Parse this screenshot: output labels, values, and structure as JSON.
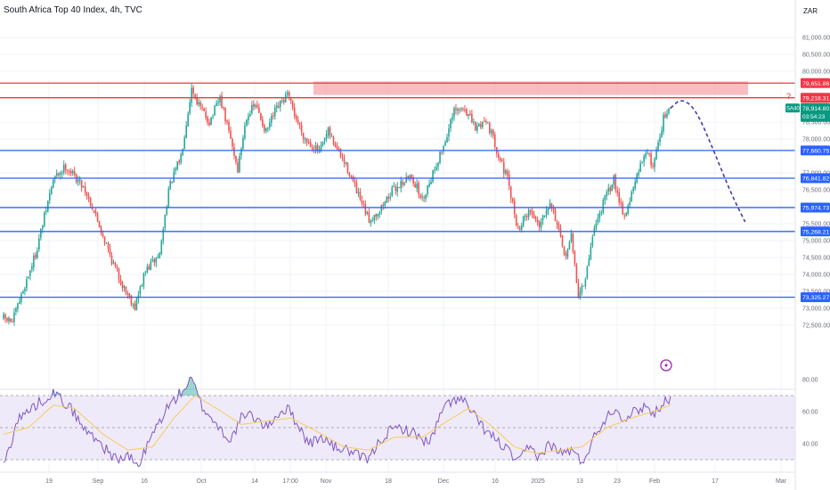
{
  "header": {
    "title": "South Africa Top 40 Index, 4h, TVC",
    "currency": "ZAR"
  },
  "colors": {
    "up": "#26a69a",
    "down": "#ef5350",
    "resistance_line": "#f23645",
    "resistance_zone": "#f7a5ab",
    "support_line": "#2962ff",
    "projection": "#4a3aa8",
    "rsi_line": "#7e57c2",
    "rsi_ma": "#f5cd5a",
    "rsi_band": "#efeaf9",
    "current_label": "#089981"
  },
  "icons": [
    "lightning-icon"
  ],
  "chart_data": [
    {
      "type": "candlestick",
      "title": "South Africa Top 40 Index, 4h, TVC",
      "ylim": [
        72000,
        81500
      ],
      "yticks": [
        "81,000.00",
        "80,500.00",
        "80,000.00",
        "78,500.00",
        "78,000.00",
        "77,000.00",
        "76,500.00",
        "75,500.00",
        "75,000.00",
        "74,500.00",
        "74,000.00",
        "73,500.00",
        "73,000.00",
        "72,500.00"
      ],
      "xticks": [
        "19",
        "Sep",
        "16",
        "Oct",
        "14",
        "17:00",
        "Nov",
        "18",
        "Dec",
        "16",
        "2025",
        "13",
        "23",
        "Feb",
        "17",
        "Mar"
      ],
      "path_points": [
        {
          "i": 0,
          "v": 72700
        },
        {
          "i": 5,
          "v": 72600
        },
        {
          "i": 18,
          "v": 74600
        },
        {
          "i": 28,
          "v": 76800
        },
        {
          "i": 35,
          "v": 77200
        },
        {
          "i": 45,
          "v": 76600
        },
        {
          "i": 50,
          "v": 76000
        },
        {
          "i": 55,
          "v": 75300
        },
        {
          "i": 62,
          "v": 74300
        },
        {
          "i": 67,
          "v": 73700
        },
        {
          "i": 74,
          "v": 73050
        },
        {
          "i": 80,
          "v": 74100
        },
        {
          "i": 88,
          "v": 74600
        },
        {
          "i": 93,
          "v": 76500
        },
        {
          "i": 100,
          "v": 77500
        },
        {
          "i": 106,
          "v": 79500
        },
        {
          "i": 110,
          "v": 79000
        },
        {
          "i": 116,
          "v": 78500
        },
        {
          "i": 122,
          "v": 79200
        },
        {
          "i": 128,
          "v": 78000
        },
        {
          "i": 132,
          "v": 77100
        },
        {
          "i": 137,
          "v": 78700
        },
        {
          "i": 142,
          "v": 79000
        },
        {
          "i": 148,
          "v": 78200
        },
        {
          "i": 153,
          "v": 78800
        },
        {
          "i": 160,
          "v": 79300
        },
        {
          "i": 165,
          "v": 78600
        },
        {
          "i": 170,
          "v": 78000
        },
        {
          "i": 178,
          "v": 77600
        },
        {
          "i": 183,
          "v": 78200
        },
        {
          "i": 188,
          "v": 77700
        },
        {
          "i": 195,
          "v": 77000
        },
        {
          "i": 200,
          "v": 76300
        },
        {
          "i": 206,
          "v": 75600
        },
        {
          "i": 212,
          "v": 75900
        },
        {
          "i": 218,
          "v": 76400
        },
        {
          "i": 224,
          "v": 76700
        },
        {
          "i": 230,
          "v": 76900
        },
        {
          "i": 236,
          "v": 76200
        },
        {
          "i": 242,
          "v": 77000
        },
        {
          "i": 248,
          "v": 77800
        },
        {
          "i": 254,
          "v": 78800
        },
        {
          "i": 260,
          "v": 78900
        },
        {
          "i": 266,
          "v": 78300
        },
        {
          "i": 272,
          "v": 78600
        },
        {
          "i": 278,
          "v": 77700
        },
        {
          "i": 284,
          "v": 76800
        },
        {
          "i": 290,
          "v": 75300
        },
        {
          "i": 296,
          "v": 75900
        },
        {
          "i": 302,
          "v": 75500
        },
        {
          "i": 308,
          "v": 76200
        },
        {
          "i": 312,
          "v": 75500
        },
        {
          "i": 316,
          "v": 74500
        },
        {
          "i": 320,
          "v": 75100
        },
        {
          "i": 324,
          "v": 73400
        },
        {
          "i": 328,
          "v": 73800
        },
        {
          "i": 332,
          "v": 75200
        },
        {
          "i": 338,
          "v": 76100
        },
        {
          "i": 344,
          "v": 76800
        },
        {
          "i": 350,
          "v": 75700
        },
        {
          "i": 356,
          "v": 76700
        },
        {
          "i": 362,
          "v": 77700
        },
        {
          "i": 366,
          "v": 77200
        },
        {
          "i": 372,
          "v": 78600
        },
        {
          "i": 376,
          "v": 78900
        }
      ],
      "resistance_lines": [
        79651.86,
        79218.31
      ],
      "resistance_zone": [
        79300,
        79700
      ],
      "support_lines": [
        77660.75,
        76841.82,
        75974.73,
        75268.21,
        73325.27
      ],
      "price_labels": [
        {
          "text": "79,651.86",
          "kind": "resistance",
          "value": 79651.86
        },
        {
          "text": "79,218.31",
          "kind": "resistance",
          "value": 79218.31
        },
        {
          "text": "77,660.75",
          "kind": "support",
          "value": 77660.75
        },
        {
          "text": "76,841.82",
          "kind": "support",
          "value": 76841.82
        },
        {
          "text": "75,974.73",
          "kind": "support",
          "value": 75974.73
        },
        {
          "text": "75,268.21",
          "kind": "support",
          "value": 75268.21
        },
        {
          "text": "73,325.27",
          "kind": "support",
          "value": 73325.27
        }
      ],
      "current": {
        "symbol": "SA40",
        "price": "78,914.80",
        "countdown": "03:54:23",
        "value": 78914.8
      },
      "annotation": "?",
      "projection": [
        {
          "t": 376,
          "v": 78914
        },
        {
          "t": 382,
          "v": 79200
        },
        {
          "t": 390,
          "v": 78900
        },
        {
          "t": 400,
          "v": 77700
        },
        {
          "t": 410,
          "v": 76400
        },
        {
          "t": 418,
          "v": 75550
        }
      ]
    },
    {
      "type": "line",
      "ylim": [
        22,
        85
      ],
      "yticks": [
        "80.00",
        "60.00",
        "40.00"
      ],
      "levels": [
        70,
        50,
        30
      ],
      "series": [
        {
          "color_key": "rsi_line",
          "points": [
            {
              "i": 0,
              "v": 26
            },
            {
              "i": 8,
              "v": 55
            },
            {
              "i": 18,
              "v": 64
            },
            {
              "i": 28,
              "v": 72
            },
            {
              "i": 38,
              "v": 62
            },
            {
              "i": 46,
              "v": 48
            },
            {
              "i": 52,
              "v": 44
            },
            {
              "i": 58,
              "v": 36
            },
            {
              "i": 64,
              "v": 30
            },
            {
              "i": 70,
              "v": 32
            },
            {
              "i": 76,
              "v": 26
            },
            {
              "i": 84,
              "v": 46
            },
            {
              "i": 92,
              "v": 62
            },
            {
              "i": 100,
              "v": 72
            },
            {
              "i": 106,
              "v": 80
            },
            {
              "i": 112,
              "v": 63
            },
            {
              "i": 120,
              "v": 52
            },
            {
              "i": 128,
              "v": 42
            },
            {
              "i": 134,
              "v": 56
            },
            {
              "i": 140,
              "v": 58
            },
            {
              "i": 148,
              "v": 50
            },
            {
              "i": 154,
              "v": 58
            },
            {
              "i": 160,
              "v": 62
            },
            {
              "i": 166,
              "v": 52
            },
            {
              "i": 172,
              "v": 40
            },
            {
              "i": 180,
              "v": 44
            },
            {
              "i": 186,
              "v": 38
            },
            {
              "i": 194,
              "v": 36
            },
            {
              "i": 200,
              "v": 32
            },
            {
              "i": 206,
              "v": 30
            },
            {
              "i": 212,
              "v": 42
            },
            {
              "i": 218,
              "v": 48
            },
            {
              "i": 224,
              "v": 50
            },
            {
              "i": 232,
              "v": 46
            },
            {
              "i": 240,
              "v": 40
            },
            {
              "i": 248,
              "v": 62
            },
            {
              "i": 254,
              "v": 68
            },
            {
              "i": 260,
              "v": 66
            },
            {
              "i": 266,
              "v": 56
            },
            {
              "i": 272,
              "v": 48
            },
            {
              "i": 278,
              "v": 42
            },
            {
              "i": 284,
              "v": 36
            },
            {
              "i": 290,
              "v": 28
            },
            {
              "i": 296,
              "v": 38
            },
            {
              "i": 302,
              "v": 32
            },
            {
              "i": 308,
              "v": 40
            },
            {
              "i": 314,
              "v": 34
            },
            {
              "i": 320,
              "v": 36
            },
            {
              "i": 326,
              "v": 28
            },
            {
              "i": 332,
              "v": 42
            },
            {
              "i": 338,
              "v": 54
            },
            {
              "i": 344,
              "v": 62
            },
            {
              "i": 350,
              "v": 56
            },
            {
              "i": 356,
              "v": 60
            },
            {
              "i": 362,
              "v": 64
            },
            {
              "i": 366,
              "v": 58
            },
            {
              "i": 372,
              "v": 66
            },
            {
              "i": 376,
              "v": 69
            }
          ]
        },
        {
          "color_key": "rsi_ma",
          "points": [
            {
              "i": 0,
              "v": 46
            },
            {
              "i": 14,
              "v": 50
            },
            {
              "i": 28,
              "v": 64
            },
            {
              "i": 40,
              "v": 62
            },
            {
              "i": 56,
              "v": 46
            },
            {
              "i": 70,
              "v": 36
            },
            {
              "i": 84,
              "v": 38
            },
            {
              "i": 96,
              "v": 56
            },
            {
              "i": 108,
              "v": 70
            },
            {
              "i": 120,
              "v": 62
            },
            {
              "i": 134,
              "v": 52
            },
            {
              "i": 148,
              "v": 54
            },
            {
              "i": 162,
              "v": 56
            },
            {
              "i": 176,
              "v": 48
            },
            {
              "i": 192,
              "v": 38
            },
            {
              "i": 206,
              "v": 36
            },
            {
              "i": 220,
              "v": 44
            },
            {
              "i": 236,
              "v": 44
            },
            {
              "i": 250,
              "v": 54
            },
            {
              "i": 262,
              "v": 62
            },
            {
              "i": 274,
              "v": 52
            },
            {
              "i": 288,
              "v": 38
            },
            {
              "i": 300,
              "v": 34
            },
            {
              "i": 314,
              "v": 36
            },
            {
              "i": 326,
              "v": 38
            },
            {
              "i": 340,
              "v": 50
            },
            {
              "i": 354,
              "v": 56
            },
            {
              "i": 366,
              "v": 60
            },
            {
              "i": 376,
              "v": 64
            }
          ]
        }
      ]
    }
  ]
}
